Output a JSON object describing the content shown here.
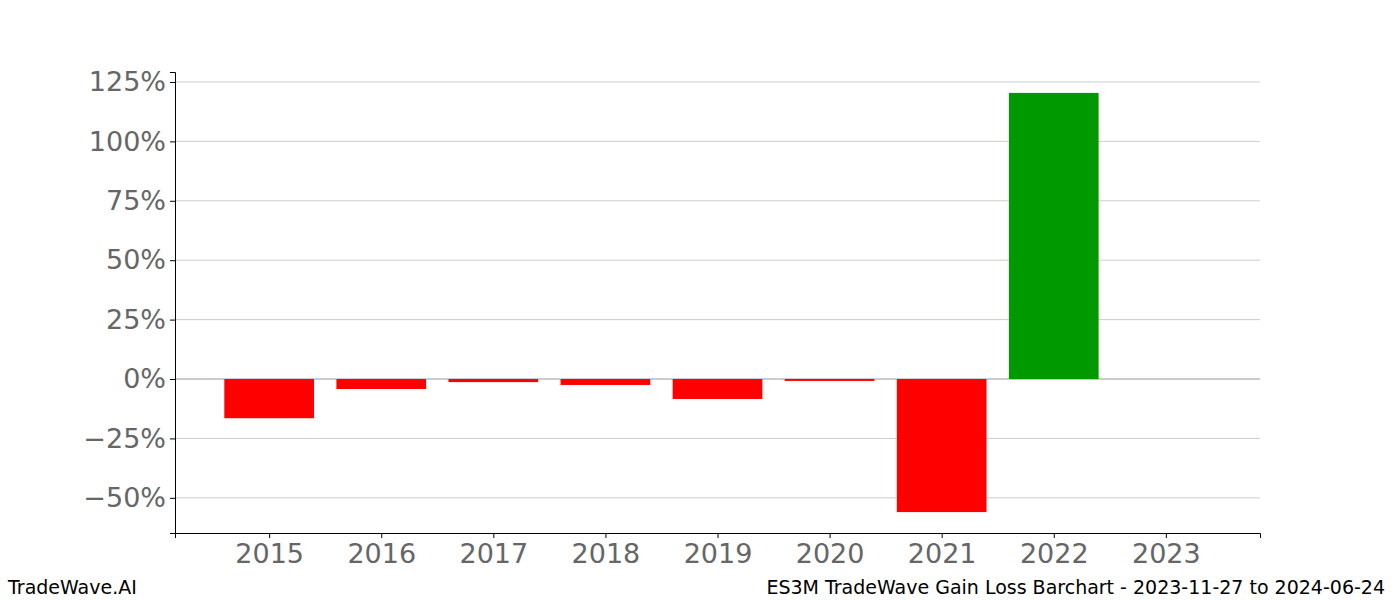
{
  "chart_data": {
    "type": "bar",
    "title": "ES3M TradeWave Gain Loss Barchart - 2023-11-27 to 2024-06-24",
    "annotations": [
      "TradeWave.AI"
    ],
    "categories": [
      "2015",
      "2016",
      "2017",
      "2018",
      "2019",
      "2020",
      "2021",
      "2022",
      "2023"
    ],
    "values": [
      -16.5,
      -4.2,
      -1.3,
      -2.5,
      -8.4,
      -0.8,
      -56,
      120.4,
      0
    ],
    "colors": [
      "#ff0000",
      "#ff0000",
      "#ff0000",
      "#ff0000",
      "#ff0000",
      "#ff0000",
      "#ff0000",
      "#009900",
      "#009900"
    ],
    "ylim": [
      -64.8,
      129.2
    ],
    "yticks": [
      {
        "value": -50,
        "label": "−50%"
      },
      {
        "value": -25,
        "label": "−25%"
      },
      {
        "value": 0,
        "label": "0%"
      },
      {
        "value": 25,
        "label": "25%"
      },
      {
        "value": 50,
        "label": "50%"
      },
      {
        "value": 75,
        "label": "75%"
      },
      {
        "value": 100,
        "label": "100%"
      },
      {
        "value": 125,
        "label": "125%"
      }
    ],
    "grid": true
  }
}
